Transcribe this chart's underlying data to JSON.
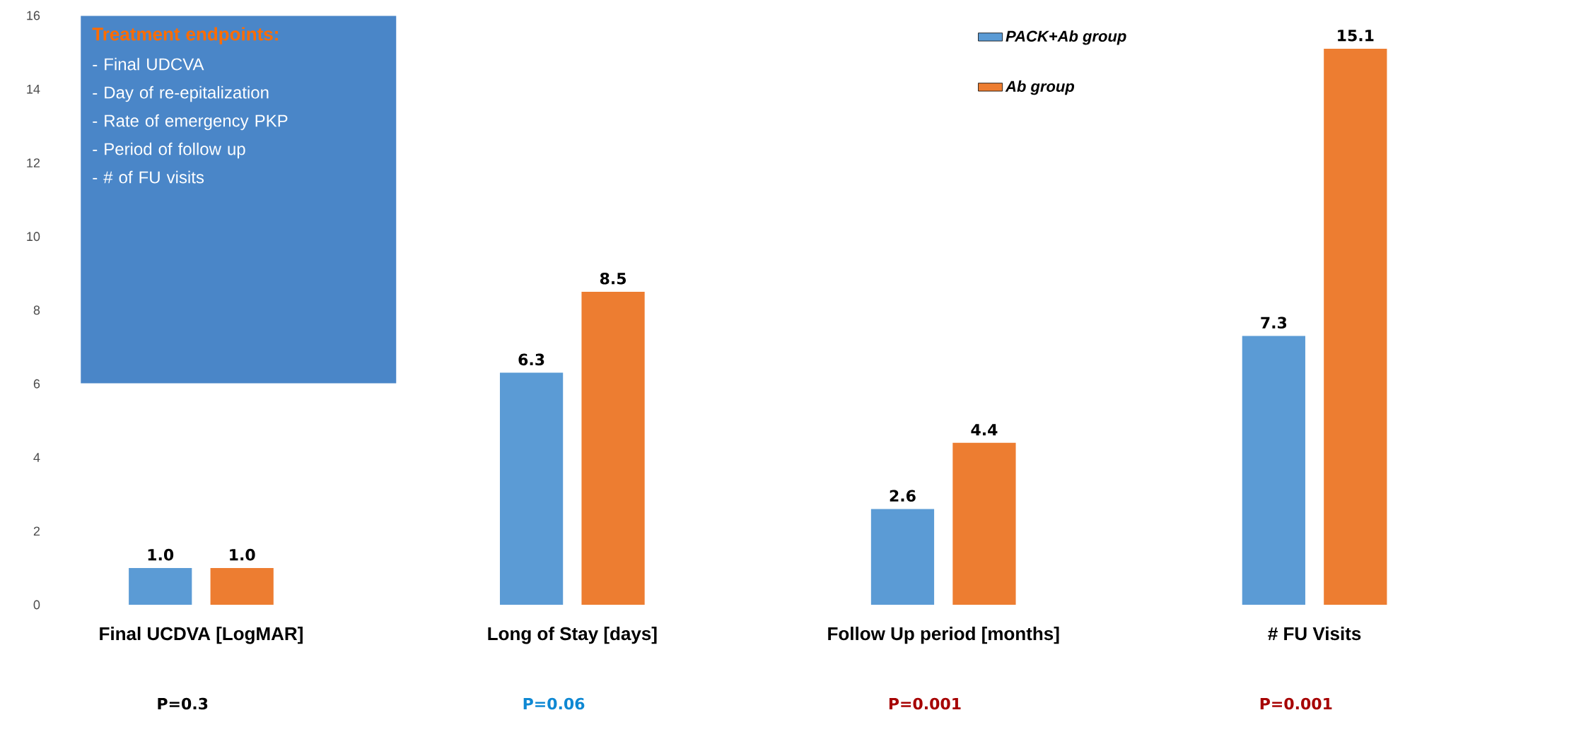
{
  "chart_data": {
    "type": "bar",
    "categories": [
      "Final UCDVA [LogMAR]",
      "Long of Stay [days]",
      "Follow Up period [months]",
      "# FU Visits"
    ],
    "series": [
      {
        "name": "PACK+Ab group",
        "color": "#5b9bd5",
        "values": [
          1.0,
          6.3,
          2.6,
          7.3
        ],
        "value_labels": [
          "1.0",
          "6.3",
          "2.6",
          "7.3"
        ]
      },
      {
        "name": "Ab group",
        "color": "#ed7d31",
        "values": [
          1.0,
          8.5,
          4.4,
          15.1
        ],
        "value_labels": [
          "1.0",
          "8.5",
          "4.4",
          "15.1"
        ]
      }
    ],
    "ylim": [
      0,
      16
    ],
    "yticks": [
      0,
      2,
      4,
      6,
      8,
      10,
      12,
      14,
      16
    ],
    "legend": "top right",
    "annotations": [
      "Treatment endpoints:",
      "- Final UDCVA",
      "- Day of re-epitalization",
      "- Rate of emergency PKP",
      "- Period of follow up",
      "- # of FU visits",
      "P=0.3",
      "P=0.06",
      "P=0.001",
      "P=0.001"
    ]
  }
}
